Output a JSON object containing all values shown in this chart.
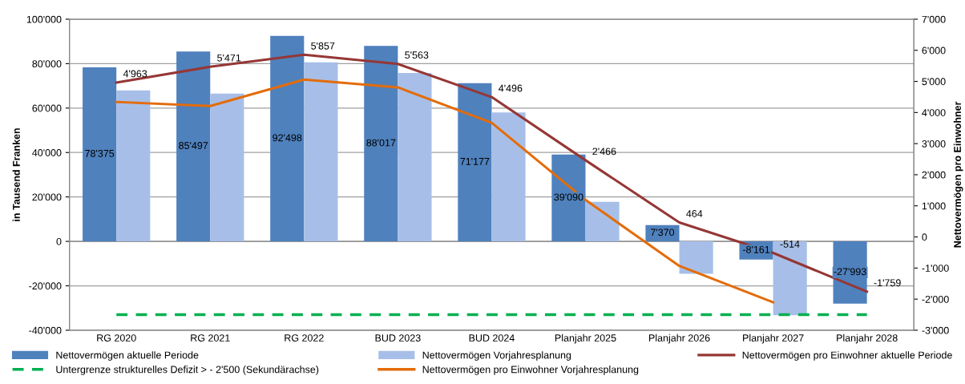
{
  "chart_data": {
    "type": "bar",
    "ylabel": "in Tausend Franken",
    "y2label": "Nettovermögen pro Einwohner",
    "categories": [
      "RG 2020",
      "RG 2021",
      "RG 2022",
      "BUD 2023",
      "BUD 2024",
      "Planjahr 2025",
      "Planjahr 2026",
      "Planjahr 2027",
      "Planjahr 2028"
    ],
    "series": [
      {
        "name": "Nettovermögen aktuelle Periode",
        "color": "#4f81bd",
        "values": [
          78375,
          85497,
          92498,
          88017,
          71177,
          39090,
          7370,
          -8161,
          -27993
        ],
        "value_labels": [
          "78'375",
          "85'497",
          "92'498",
          "88'017",
          "71'177",
          "39'090",
          "7'370",
          "-8'161",
          "-27'993"
        ]
      },
      {
        "name": "Nettovermögen Vorjahresplanung",
        "color": "#a7bfe8",
        "values": [
          68000,
          66500,
          80600,
          75800,
          58000,
          17800,
          -14600,
          -33300,
          null
        ]
      },
      {
        "name": "Nettovermögen pro Einwohner aktuelle Periode",
        "type": "line",
        "axis": "y2",
        "color": "#953735",
        "values": [
          4963,
          5471,
          5857,
          5563,
          4496,
          2466,
          464,
          -514,
          -1759
        ],
        "value_labels": [
          "4'963",
          "5'471",
          "5'857",
          "5'563",
          "4'496",
          "2'466",
          "464",
          "-514",
          "-1'759"
        ]
      },
      {
        "name": "Untergrenze strukturelles Defizit > - 2'500 (Sekundärachse)",
        "type": "line",
        "axis": "y2",
        "line_style": "dashed",
        "color": "#00b050",
        "values": [
          -2500,
          -2500,
          -2500,
          -2500,
          -2500,
          -2500,
          -2500,
          -2500,
          -2500
        ]
      },
      {
        "name": "Nettovermögen pro Einwohner Vorjahresplanung",
        "type": "line",
        "axis": "y2",
        "color": "#e46c0a",
        "values": [
          4340,
          4210,
          5060,
          4810,
          3670,
          1190,
          -930,
          -2100,
          null
        ]
      }
    ],
    "ylim": [
      -40000,
      100000
    ],
    "yticks": [
      {
        "value": -40000,
        "label": "-40'000"
      },
      {
        "value": -20000,
        "label": "-20'000"
      },
      0,
      {
        "value": 20000,
        "label": "20'000"
      },
      {
        "value": 40000,
        "label": "40'000"
      },
      {
        "value": 60000,
        "label": "60'000"
      },
      {
        "value": 80000,
        "label": "80'000"
      },
      {
        "value": 100000,
        "label": "100'000"
      }
    ],
    "y2lim": [
      -3000,
      7000
    ],
    "y2ticks": [
      {
        "value": -3000,
        "label": "-3'000"
      },
      {
        "value": -2000,
        "label": "-2'000"
      },
      {
        "value": -1000,
        "label": "-1'000"
      },
      0,
      {
        "value": 1000,
        "label": "1'000"
      },
      {
        "value": 2000,
        "label": "2'000"
      },
      {
        "value": 3000,
        "label": "3'000"
      },
      {
        "value": 4000,
        "label": "4'000"
      },
      {
        "value": 5000,
        "label": "5'000"
      },
      {
        "value": 6000,
        "label": "6'000"
      },
      {
        "value": 7000,
        "label": "7'000"
      }
    ],
    "grid": "y",
    "legend": "bottom",
    "marker": "none"
  }
}
